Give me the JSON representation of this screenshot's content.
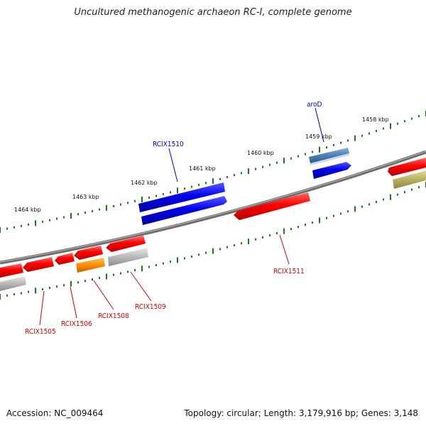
{
  "title": "Uncultured methanogenic archaeon RC-I, complete genome",
  "footer": {
    "accession": "Accession: NC_009464",
    "topology": "Topology: circular; Length: 3,179,916 bp; Genes: 3,148"
  },
  "colors": {
    "backbone": "#777777",
    "tick": "#1a7a1a",
    "label_red": "#cc0000",
    "label_blue": "#0000cc",
    "gene_red": "#ff0000",
    "gene_blue": "#0000ee",
    "gene_steel": "#4a7eb5",
    "gene_orange": "#ff8c00",
    "gene_gray": "#b8b8b8",
    "gene_olive": "#b8b060"
  },
  "kbp_labels": [
    "1464 kbp",
    "1463 kbp",
    "1462 kbp",
    "1461 kbp",
    "1460 kbp",
    "1459 kbp",
    "1458 kbp"
  ],
  "gene_labels": [
    "aroD",
    "RCIX1510",
    "RCIX1511",
    "RCIX1509",
    "RCIX1508",
    "RCIX1506",
    "RCIX1505"
  ]
}
